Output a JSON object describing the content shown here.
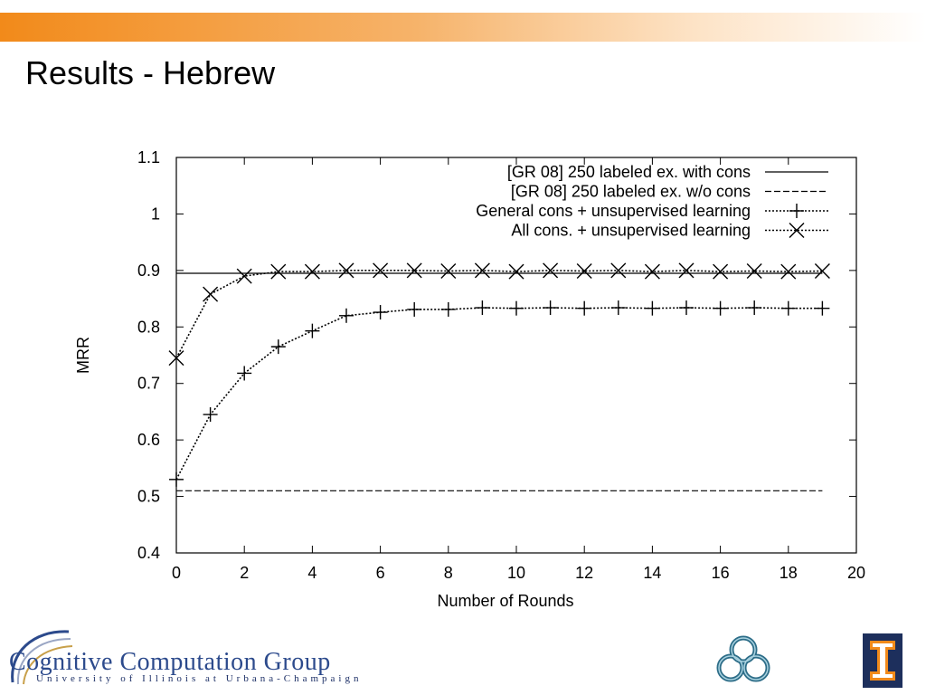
{
  "slide": {
    "title": "Results - Hebrew"
  },
  "footer": {
    "logo_text_1": "Cognitive Computation Group",
    "logo_text_2": "University of Illinois at Urbana-Champaign",
    "knot_icon": "celtic-knot-icon",
    "uiuc_icon": "block-i-icon"
  },
  "chart_data": {
    "type": "line",
    "xlabel": "Number of Rounds",
    "ylabel": "MRR",
    "xlim": [
      0,
      20
    ],
    "ylim": [
      0.4,
      1.1
    ],
    "xticks": [
      0,
      2,
      4,
      6,
      8,
      10,
      12,
      14,
      16,
      18,
      20
    ],
    "yticks": [
      0.4,
      0.5,
      0.6,
      0.7,
      0.8,
      0.9,
      1,
      1.1
    ],
    "grid": false,
    "legend_position": "top-right",
    "series": [
      {
        "name": "[GR 08] 250 labeled ex. with cons",
        "style": "solid",
        "marker": "none",
        "x": [
          0,
          19
        ],
        "y": [
          0.895,
          0.895
        ]
      },
      {
        "name": "[GR 08] 250 labeled ex. w/o cons",
        "style": "dashed",
        "marker": "none",
        "x": [
          0,
          19
        ],
        "y": [
          0.51,
          0.51
        ]
      },
      {
        "name": "General cons + unsupervised learning",
        "style": "dotted",
        "marker": "plus",
        "x": [
          0,
          1,
          2,
          3,
          4,
          5,
          6,
          7,
          8,
          9,
          10,
          11,
          12,
          13,
          14,
          15,
          16,
          17,
          18,
          19
        ],
        "y": [
          0.53,
          0.645,
          0.718,
          0.765,
          0.793,
          0.82,
          0.826,
          0.831,
          0.831,
          0.834,
          0.833,
          0.834,
          0.833,
          0.834,
          0.833,
          0.834,
          0.833,
          0.834,
          0.833,
          0.833
        ]
      },
      {
        "name": "All cons. + unsupervised learning",
        "style": "dotted",
        "marker": "cross",
        "x": [
          0,
          1,
          2,
          3,
          4,
          5,
          6,
          7,
          8,
          9,
          10,
          11,
          12,
          13,
          14,
          15,
          16,
          17,
          18,
          19
        ],
        "y": [
          0.745,
          0.858,
          0.89,
          0.898,
          0.898,
          0.9,
          0.9,
          0.9,
          0.899,
          0.9,
          0.898,
          0.9,
          0.899,
          0.9,
          0.898,
          0.9,
          0.898,
          0.899,
          0.898,
          0.899
        ]
      }
    ],
    "colors": {
      "axis": "#000000",
      "series": "#000000"
    }
  }
}
